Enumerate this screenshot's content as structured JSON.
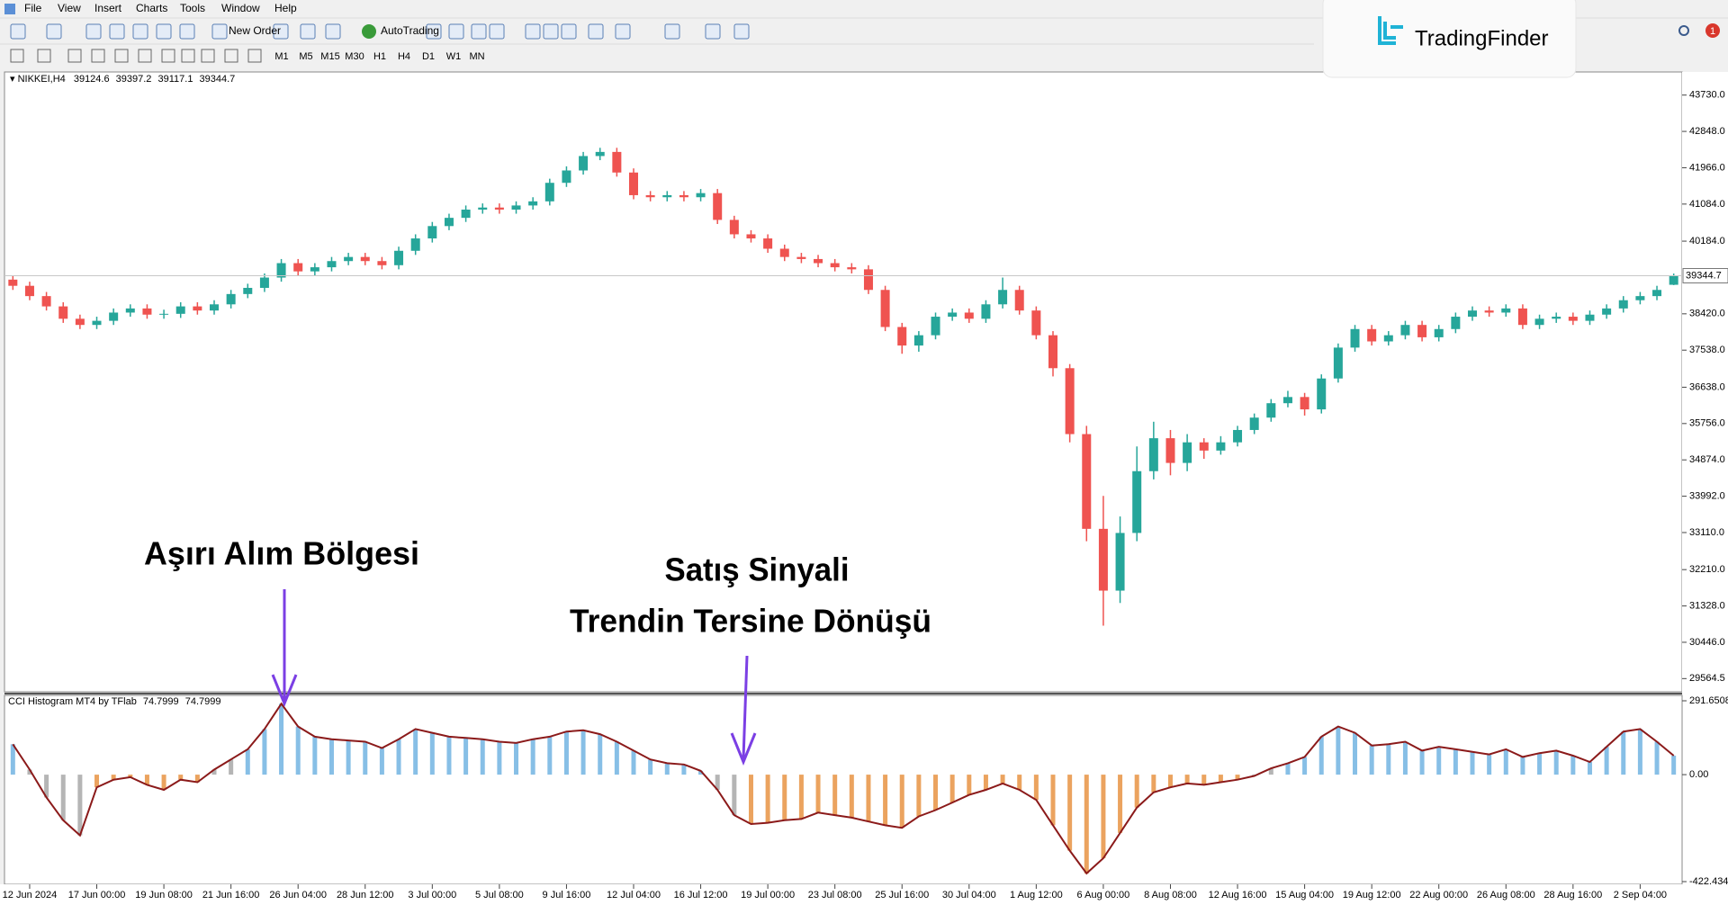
{
  "menu": [
    "File",
    "View",
    "Insert",
    "Charts",
    "Tools",
    "Window",
    "Help"
  ],
  "toolbar": {
    "new_order": "New Order",
    "autotrading": "AutoTrading",
    "timeframes": [
      "M1",
      "M5",
      "M15",
      "M30",
      "H1",
      "H4",
      "D1",
      "W1",
      "MN"
    ]
  },
  "logo": "TradingFinder",
  "notification_count": 1,
  "chart_data": [
    {
      "type": "candlestick",
      "title": "NIKKEI,H4",
      "up_color": "#26a69a",
      "down_color": "#ef5350",
      "categories": [
        null,
        "12 Jun 2024",
        null,
        null,
        null,
        "17 Jun 00:00",
        null,
        null,
        null,
        "19 Jun 08:00",
        null,
        null,
        null,
        "21 Jun 16:00",
        null,
        null,
        null,
        "26 Jun 04:00",
        null,
        null,
        null,
        "28 Jun 12:00",
        null,
        null,
        null,
        "3 Jul 00:00",
        null,
        null,
        null,
        "5 Jul 08:00",
        null,
        null,
        null,
        "9 Jul 16:00",
        null,
        null,
        null,
        "12 Jul 04:00",
        null,
        null,
        null,
        "16 Jul 12:00",
        null,
        null,
        null,
        "19 Jul 00:00",
        null,
        null,
        null,
        "23 Jul 08:00",
        null,
        null,
        null,
        "25 Jul 16:00",
        null,
        null,
        null,
        "30 Jul 04:00",
        null,
        null,
        null,
        "1 Aug 12:00",
        null,
        null,
        null,
        "6 Aug 00:00",
        null,
        null,
        null,
        "8 Aug 08:00",
        null,
        null,
        null,
        "12 Aug 16:00",
        null,
        null,
        null,
        "15 Aug 04:00",
        null,
        null,
        null,
        "19 Aug 12:00",
        null,
        null,
        null,
        "22 Aug 00:00",
        null,
        null,
        null,
        "26 Aug 08:00",
        null,
        null,
        null,
        "28 Aug 16:00",
        null,
        null,
        null,
        "2 Sep 04:00",
        null,
        null
      ],
      "open": [
        39250,
        39100,
        38850,
        38600,
        38300,
        38150,
        38250,
        38450,
        38550,
        38400,
        38420,
        38600,
        38500,
        38650,
        38900,
        39050,
        39300,
        39650,
        39450,
        39550,
        39700,
        39800,
        39700,
        39600,
        39950,
        40250,
        40550,
        40750,
        40950,
        41000,
        40950,
        41050,
        41150,
        41600,
        41900,
        42250,
        42350,
        41850,
        41300,
        41250,
        41300,
        41250,
        41350,
        40700,
        40350,
        40250,
        40000,
        39800,
        39750,
        39650,
        39550,
        39500,
        39000,
        38100,
        37650,
        37900,
        38350,
        38450,
        38300,
        38650,
        39000,
        38500,
        37900,
        37100,
        35500,
        33200,
        31700,
        33100,
        34600,
        35400,
        34800,
        35300,
        35100,
        35300,
        35600,
        35900,
        36250,
        36400,
        36100,
        36850,
        37600,
        38050,
        37750,
        37900,
        38150,
        37850,
        38050,
        38350,
        38500,
        38450,
        38550,
        38150,
        38300,
        38350,
        38250,
        38400,
        38550,
        38750,
        38850,
        39124.6
      ],
      "high": [
        39350,
        39200,
        38950,
        38700,
        38400,
        38350,
        38550,
        38650,
        38650,
        38520,
        38700,
        38700,
        38750,
        39000,
        39150,
        39400,
        39750,
        39750,
        39650,
        39800,
        39900,
        39900,
        39800,
        40050,
        40350,
        40650,
        40850,
        41050,
        41100,
        41100,
        41150,
        41250,
        41700,
        42000,
        42350,
        42450,
        42450,
        41950,
        41400,
        41400,
        41400,
        41450,
        41450,
        40800,
        40450,
        40350,
        40100,
        39900,
        39850,
        39750,
        39650,
        39600,
        39100,
        38200,
        38000,
        38450,
        38550,
        38550,
        38750,
        39300,
        39100,
        38600,
        38000,
        37200,
        35700,
        34000,
        33500,
        35200,
        35800,
        35600,
        35500,
        35400,
        35450,
        35700,
        36000,
        36350,
        36550,
        36500,
        36950,
        37700,
        38150,
        38150,
        38000,
        38250,
        38250,
        38150,
        38450,
        38600,
        38600,
        38650,
        38650,
        38400,
        38450,
        38450,
        38500,
        38650,
        38850,
        38950,
        39100,
        39397.2
      ],
      "low": [
        39000,
        38750,
        38500,
        38200,
        38050,
        38050,
        38150,
        38350,
        38300,
        38300,
        38320,
        38400,
        38400,
        38550,
        38800,
        38950,
        39200,
        39350,
        39350,
        39450,
        39600,
        39600,
        39500,
        39500,
        39850,
        40150,
        40450,
        40650,
        40850,
        40850,
        40850,
        40950,
        41050,
        41500,
        41800,
        42150,
        41750,
        41200,
        41150,
        41150,
        41150,
        41150,
        40600,
        40250,
        40150,
        39900,
        39700,
        39650,
        39550,
        39450,
        39400,
        38900,
        38000,
        37450,
        37500,
        37800,
        38250,
        38200,
        38200,
        38550,
        38400,
        37800,
        36900,
        35300,
        32900,
        30850,
        31400,
        32900,
        34400,
        34500,
        34600,
        34900,
        35000,
        35200,
        35500,
        35800,
        36150,
        35950,
        36000,
        36750,
        37500,
        37650,
        37650,
        37800,
        37750,
        37750,
        37950,
        38250,
        38350,
        38350,
        38050,
        38050,
        38200,
        38150,
        38150,
        38300,
        38450,
        38650,
        38750,
        39117.1
      ],
      "close": [
        39100,
        38850,
        38600,
        38300,
        38150,
        38250,
        38450,
        38550,
        38400,
        38420,
        38600,
        38500,
        38650,
        38900,
        39050,
        39300,
        39650,
        39450,
        39550,
        39700,
        39800,
        39700,
        39600,
        39950,
        40250,
        40550,
        40750,
        40950,
        41000,
        40950,
        41050,
        41150,
        41600,
        41900,
        42250,
        42350,
        41850,
        41300,
        41250,
        41300,
        41250,
        41350,
        40700,
        40350,
        40250,
        40000,
        39800,
        39750,
        39650,
        39550,
        39500,
        39000,
        38100,
        37650,
        37900,
        38350,
        38450,
        38300,
        38650,
        39000,
        38500,
        37900,
        37100,
        35500,
        33200,
        31700,
        33100,
        34600,
        35400,
        34800,
        35300,
        35100,
        35300,
        35600,
        35900,
        36250,
        36400,
        36100,
        36850,
        37600,
        38050,
        37750,
        37900,
        38150,
        37850,
        38050,
        38350,
        38500,
        38450,
        38550,
        38150,
        38300,
        38350,
        38250,
        38400,
        38550,
        38750,
        38850,
        39000,
        39344.7
      ],
      "ylim": [
        29244,
        44291
      ],
      "yticks": [
        {
          "value": 43730,
          "label": "43730.0"
        },
        {
          "value": 42848,
          "label": "42848.0"
        },
        {
          "value": 41966,
          "label": "41966.0"
        },
        {
          "value": 41084,
          "label": "41084.0"
        },
        {
          "value": 40184,
          "label": "40184.0"
        },
        {
          "value": 38420,
          "label": "38420.0"
        },
        {
          "value": 37538,
          "label": "37538.0"
        },
        {
          "value": 36638,
          "label": "36638.0"
        },
        {
          "value": 35756,
          "label": "35756.0"
        },
        {
          "value": 34874,
          "label": "34874.0"
        },
        {
          "value": 33992,
          "label": "33992.0"
        },
        {
          "value": 33110,
          "label": "33110.0"
        },
        {
          "value": 32210,
          "label": "32210.0"
        },
        {
          "value": 31328,
          "label": "31328.0"
        },
        {
          "value": 30446,
          "label": "30446.0"
        },
        29564.5
      ],
      "annotations": [
        "Aşırı Alım Bölgesi",
        "Satış Sinyali",
        "Trendin Tersine Dönüşü"
      ]
    },
    {
      "type": "bar",
      "title": "CCI Histogram MT4 by TFlab",
      "line_color": "#8b1a1a",
      "values": [
        120,
        20,
        -90,
        -180,
        -240,
        -50,
        -20,
        -10,
        -40,
        -60,
        -20,
        -30,
        20,
        60,
        100,
        180,
        280,
        190,
        150,
        140,
        135,
        130,
        105,
        140,
        180,
        165,
        150,
        145,
        140,
        130,
        125,
        140,
        150,
        170,
        175,
        160,
        130,
        95,
        60,
        45,
        40,
        15,
        -60,
        -160,
        -195,
        -190,
        -180,
        -175,
        -150,
        -160,
        -170,
        -185,
        -200,
        -210,
        -165,
        -140,
        -110,
        -80,
        -60,
        -35,
        -60,
        -100,
        -200,
        -300,
        -390,
        -330,
        -230,
        -130,
        -70,
        -50,
        -35,
        -40,
        -30,
        -20,
        -5,
        25,
        45,
        70,
        150,
        190,
        165,
        115,
        120,
        130,
        95,
        110,
        100,
        90,
        80,
        100,
        70,
        85,
        95,
        75,
        50,
        110,
        170,
        180,
        130,
        74.7999
      ],
      "colors": [
        "#87bfe6",
        "#b5b5b5",
        "#b5b5b5",
        "#b5b5b5",
        "#b5b5b5",
        "#eba35f",
        "#eba35f",
        "#eba35f",
        "#eba35f",
        "#eba35f",
        "#eba35f",
        "#eba35f",
        "#b5b5b5",
        "#b5b5b5",
        "#87bfe6",
        "#87bfe6",
        "#87bfe6",
        "#87bfe6",
        "#87bfe6",
        "#87bfe6",
        "#87bfe6",
        "#87bfe6",
        "#87bfe6",
        "#87bfe6",
        "#87bfe6",
        "#87bfe6",
        "#87bfe6",
        "#87bfe6",
        "#87bfe6",
        "#87bfe6",
        "#87bfe6",
        "#87bfe6",
        "#87bfe6",
        "#87bfe6",
        "#87bfe6",
        "#87bfe6",
        "#87bfe6",
        "#87bfe6",
        "#87bfe6",
        "#87bfe6",
        "#87bfe6",
        "#87bfe6",
        "#b5b5b5",
        "#b5b5b5",
        "#eba35f",
        "#eba35f",
        "#eba35f",
        "#eba35f",
        "#eba35f",
        "#eba35f",
        "#eba35f",
        "#eba35f",
        "#eba35f",
        "#eba35f",
        "#eba35f",
        "#eba35f",
        "#eba35f",
        "#eba35f",
        "#eba35f",
        "#eba35f",
        "#eba35f",
        "#eba35f",
        "#eba35f",
        "#eba35f",
        "#eba35f",
        "#eba35f",
        "#eba35f",
        "#eba35f",
        "#eba35f",
        "#eba35f",
        "#eba35f",
        "#eba35f",
        "#eba35f",
        "#eba35f",
        "#b5b5b5",
        "#b5b5b5",
        "#87bfe6",
        "#87bfe6",
        "#87bfe6",
        "#87bfe6",
        "#87bfe6",
        "#87bfe6",
        "#87bfe6",
        "#87bfe6",
        "#87bfe6",
        "#87bfe6",
        "#87bfe6",
        "#87bfe6",
        "#87bfe6",
        "#87bfe6",
        "#87bfe6",
        "#87bfe6",
        "#87bfe6",
        "#87bfe6",
        "#87bfe6",
        "#87bfe6",
        "#87bfe6",
        "#87bfe6",
        "#87bfe6",
        "#87bfe6"
      ],
      "ylim": [
        -422.4344,
        291.6508
      ],
      "yticks": [
        291.6508,
        {
          "value": 0,
          "label": "0.00"
        },
        -422.4344
      ]
    }
  ]
}
